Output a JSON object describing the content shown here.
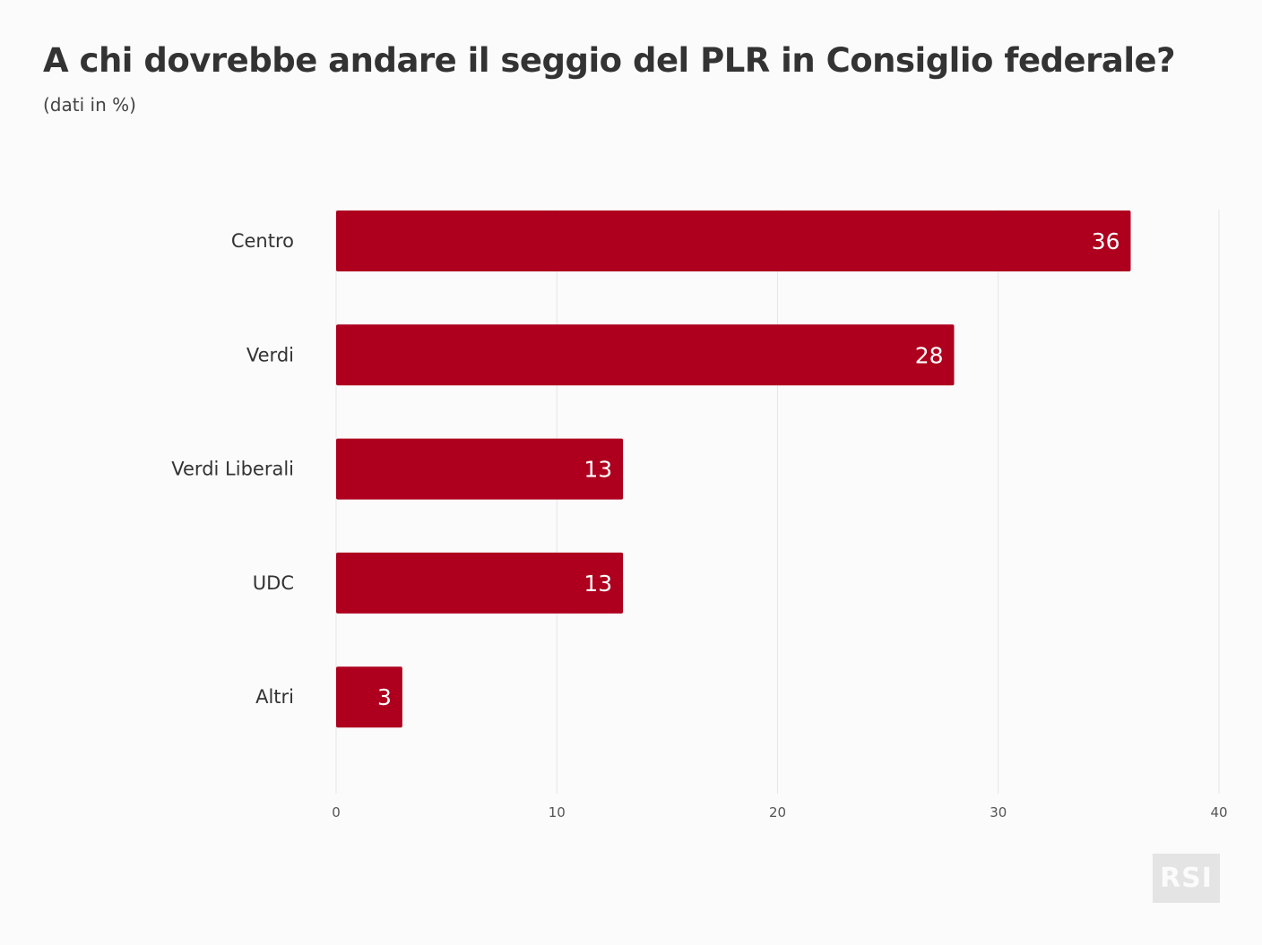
{
  "header": {
    "title": "A chi dovrebbe andare il seggio del PLR in Consiglio federale?",
    "subtitle": "(dati in %)"
  },
  "chart_data": {
    "type": "bar",
    "orientation": "horizontal",
    "title": "A chi dovrebbe andare il seggio del PLR in Consiglio federale?",
    "subtitle": "(dati in %)",
    "categories": [
      "Centro",
      "Verdi",
      "Verdi Liberali",
      "UDC",
      "Altri"
    ],
    "values": [
      36,
      28,
      13,
      13,
      3
    ],
    "xlim": [
      0,
      40
    ],
    "ticks": [
      0,
      10,
      20,
      30,
      40
    ],
    "grid": true,
    "data_labels": true,
    "bar_color": "#ae001e",
    "grid_color": "#e6e6e6"
  },
  "logo": {
    "text": "RSI"
  }
}
